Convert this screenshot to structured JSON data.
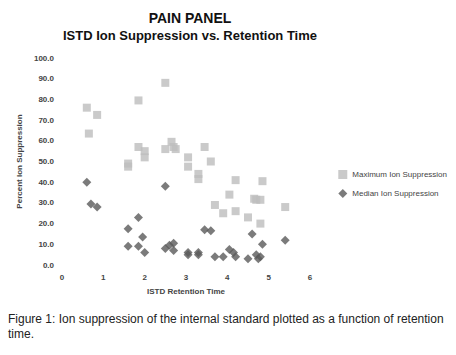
{
  "chart_data": {
    "type": "scatter",
    "title": "PAIN PANEL",
    "subtitle": "ISTD Ion Suppression vs. Retention Time",
    "x_label": "ISTD Retention Time",
    "y_label": "Percent Ion Suppression",
    "caption": "Figure 1: Ion suppression of the internal standard plotted as a function of retention time.",
    "xlim": [
      0,
      6
    ],
    "xticks": [
      0,
      1,
      2,
      3,
      4,
      5,
      6
    ],
    "ylim": [
      0,
      100
    ],
    "yticks": [
      {
        "value": 0,
        "label": "0.0"
      },
      {
        "value": 10,
        "label": "10.0"
      },
      {
        "value": 20,
        "label": "20.0"
      },
      {
        "value": 30,
        "label": "30.0"
      },
      {
        "value": 40,
        "label": "40.0"
      },
      {
        "value": 50,
        "label": "50.0"
      },
      {
        "value": 60,
        "label": "60.0"
      },
      {
        "value": 70,
        "label": "70.0"
      },
      {
        "value": 80,
        "label": "80.0"
      },
      {
        "value": 90,
        "label": "90.0"
      },
      {
        "value": 100,
        "label": "100.0"
      }
    ],
    "grid": false,
    "legend": "right",
    "series": [
      {
        "name": "Maximum Ion Suppression",
        "color": "#bdbdbd",
        "marker": "square",
        "x": [
          0.6,
          0.65,
          0.85,
          1.6,
          1.6,
          1.85,
          1.85,
          2.0,
          2.0,
          2.5,
          2.5,
          2.65,
          2.7,
          2.75,
          3.05,
          3.05,
          3.3,
          3.3,
          3.45,
          3.6,
          3.7,
          3.9,
          4.05,
          4.2,
          4.2,
          4.5,
          4.65,
          4.7,
          4.8,
          4.8,
          4.85,
          5.4
        ],
        "values": [
          76,
          63.5,
          72.5,
          49,
          47.5,
          79.5,
          57,
          55,
          52,
          88,
          56,
          59.5,
          57,
          56,
          52,
          47.5,
          44,
          41.5,
          57,
          50,
          29,
          25,
          34,
          41,
          26,
          23,
          32,
          31.5,
          31.5,
          20,
          40.5,
          28
        ]
      },
      {
        "name": "Median Ion Suppression",
        "color": "#5a5a5a",
        "marker": "diamond",
        "x": [
          0.6,
          0.7,
          0.85,
          1.6,
          1.6,
          1.85,
          1.85,
          1.95,
          2.0,
          2.5,
          2.5,
          2.6,
          2.7,
          2.7,
          3.05,
          3.05,
          3.3,
          3.3,
          3.45,
          3.6,
          3.7,
          3.9,
          4.05,
          4.15,
          4.2,
          4.5,
          4.6,
          4.7,
          4.75,
          4.8,
          4.85,
          5.4
        ],
        "values": [
          40,
          29.5,
          28,
          17.5,
          9,
          23,
          9,
          13.5,
          6,
          38,
          8,
          9.5,
          10.5,
          7,
          6,
          5,
          6,
          5,
          17,
          16.5,
          4,
          4,
          7.5,
          6,
          4,
          3,
          15,
          5,
          3,
          4,
          10,
          12
        ]
      }
    ]
  }
}
